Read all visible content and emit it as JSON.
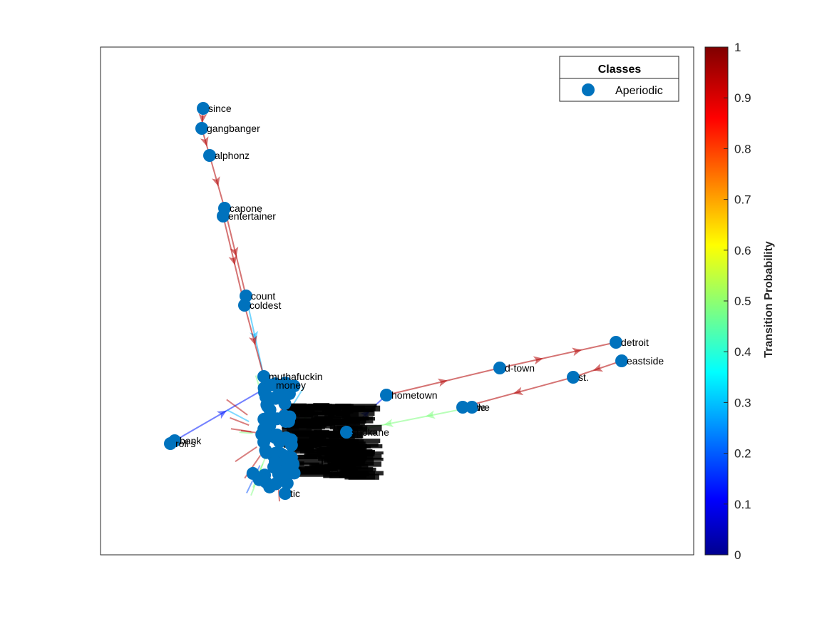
{
  "chart_data": {
    "type": "graph",
    "legend": {
      "title": "Classes",
      "entries": [
        {
          "label": "Aperiodic",
          "color": "#0072BD"
        }
      ],
      "placement": "top-right"
    },
    "colorbar": {
      "label": "Transition Probability",
      "range": [
        0,
        1
      ],
      "ticks": [
        "0",
        "0.1",
        "0.2",
        "0.3",
        "0.4",
        "0.5",
        "0.6",
        "0.7",
        "0.8",
        "0.9",
        "1"
      ],
      "colormap": "jet"
    },
    "node_color": "#0072BD",
    "labeled_nodes": [
      "since",
      "gangbanger",
      "alphonz",
      "capone",
      "entertainer",
      "count",
      "coldest",
      "muthafuckin",
      "hometown",
      "d-town",
      "detroit",
      "eastside",
      "st.",
      "side",
      "west",
      "spokane",
      "bank",
      "roll's",
      "money",
      "tic"
    ],
    "edges": [
      {
        "from": "since",
        "to": "gangbanger",
        "p": 0.95
      },
      {
        "from": "gangbanger",
        "to": "alphonz",
        "p": 0.95
      },
      {
        "from": "alphonz",
        "to": "capone",
        "p": 0.95
      },
      {
        "from": "capone",
        "to": "count",
        "p": 0.95
      },
      {
        "from": "entertainer",
        "to": "coldest",
        "p": 0.95
      },
      {
        "from": "count",
        "to": "muthafuckin",
        "p": 0.3
      },
      {
        "from": "coldest",
        "to": "muthafuckin",
        "p": 0.95
      },
      {
        "from": "hometown",
        "to": "d-town",
        "p": 0.95
      },
      {
        "from": "d-town",
        "to": "detroit",
        "p": 0.95
      },
      {
        "from": "eastside",
        "to": "st.",
        "p": 0.95
      },
      {
        "from": "st.",
        "to": "side",
        "p": 0.95
      },
      {
        "from": "west",
        "to": "spokane",
        "p": 0.5
      },
      {
        "from": "spokane",
        "to": "hometown",
        "p": 0.15
      },
      {
        "from": "bank",
        "to": "money",
        "p": 0.15
      }
    ]
  }
}
